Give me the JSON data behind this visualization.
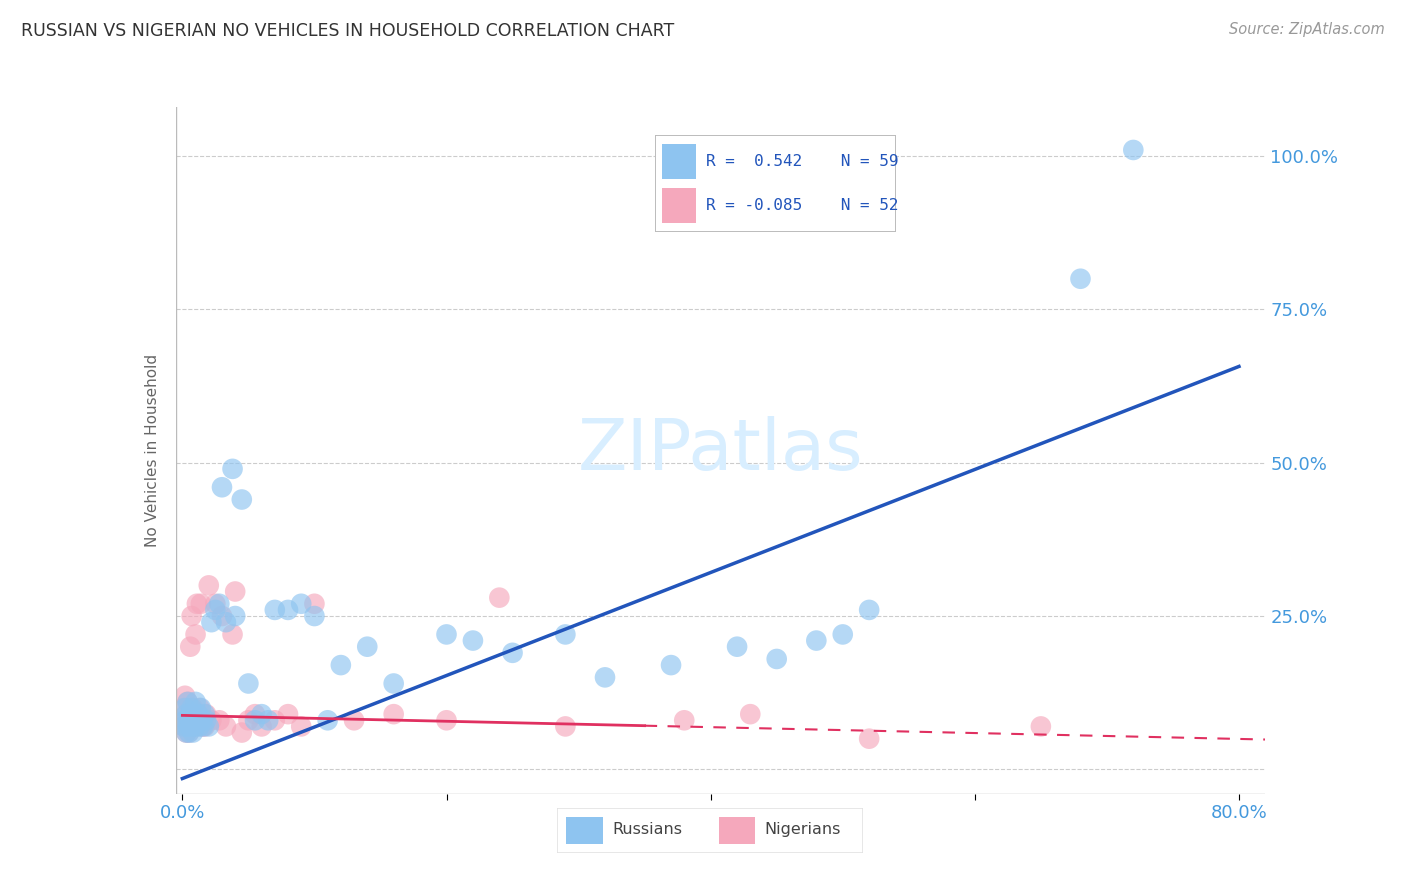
{
  "title": "RUSSIAN VS NIGERIAN NO VEHICLES IN HOUSEHOLD CORRELATION CHART",
  "source": "Source: ZipAtlas.com",
  "ylabel": "No Vehicles in Household",
  "russian_R": 0.542,
  "russian_N": 59,
  "nigerian_R": -0.085,
  "nigerian_N": 52,
  "russian_color": "#8EC4F0",
  "nigerian_color": "#F5A8BC",
  "russian_line_color": "#2255BB",
  "nigerian_line_color": "#E03060",
  "background_color": "#FFFFFF",
  "grid_color": "#CCCCCC",
  "watermark": "ZIPatlas",
  "watermark_color": "#D8EEFF",
  "title_color": "#333333",
  "axis_label_color": "#4499DD",
  "ytick_vals": [
    0.0,
    0.25,
    0.5,
    0.75,
    1.0
  ],
  "ytick_labels": [
    "",
    "25.0%",
    "50.0%",
    "75.0%",
    "100.0%"
  ],
  "xtick_vals": [
    0.0,
    0.2,
    0.4,
    0.6,
    0.8
  ],
  "xtick_labels": [
    "0.0%",
    "",
    "",
    "",
    "80.0%"
  ],
  "xlim": [
    -0.005,
    0.82
  ],
  "ylim": [
    -0.04,
    1.08
  ],
  "rus_x": [
    0.001,
    0.002,
    0.002,
    0.003,
    0.003,
    0.004,
    0.004,
    0.005,
    0.005,
    0.006,
    0.006,
    0.007,
    0.007,
    0.008,
    0.009,
    0.01,
    0.01,
    0.011,
    0.012,
    0.013,
    0.014,
    0.015,
    0.016,
    0.017,
    0.018,
    0.02,
    0.022,
    0.025,
    0.028,
    0.03,
    0.033,
    0.038,
    0.04,
    0.045,
    0.05,
    0.055,
    0.06,
    0.065,
    0.07,
    0.08,
    0.09,
    0.1,
    0.11,
    0.12,
    0.14,
    0.16,
    0.2,
    0.22,
    0.25,
    0.29,
    0.32,
    0.37,
    0.42,
    0.45,
    0.48,
    0.52,
    0.5,
    0.68,
    0.72
  ],
  "rus_y": [
    0.07,
    0.08,
    0.1,
    0.06,
    0.09,
    0.07,
    0.11,
    0.08,
    0.06,
    0.09,
    0.07,
    0.1,
    0.08,
    0.06,
    0.09,
    0.07,
    0.11,
    0.08,
    0.09,
    0.07,
    0.1,
    0.08,
    0.07,
    0.09,
    0.08,
    0.07,
    0.24,
    0.26,
    0.27,
    0.46,
    0.24,
    0.49,
    0.25,
    0.44,
    0.14,
    0.08,
    0.09,
    0.08,
    0.26,
    0.26,
    0.27,
    0.25,
    0.08,
    0.17,
    0.2,
    0.14,
    0.22,
    0.21,
    0.19,
    0.22,
    0.15,
    0.17,
    0.2,
    0.18,
    0.21,
    0.26,
    0.22,
    0.8,
    1.01
  ],
  "nig_x": [
    0.001,
    0.001,
    0.002,
    0.002,
    0.003,
    0.003,
    0.004,
    0.004,
    0.005,
    0.005,
    0.006,
    0.006,
    0.007,
    0.007,
    0.008,
    0.008,
    0.009,
    0.01,
    0.01,
    0.011,
    0.012,
    0.013,
    0.014,
    0.015,
    0.016,
    0.017,
    0.018,
    0.02,
    0.022,
    0.025,
    0.028,
    0.03,
    0.033,
    0.038,
    0.04,
    0.045,
    0.05,
    0.055,
    0.06,
    0.07,
    0.08,
    0.09,
    0.1,
    0.13,
    0.16,
    0.2,
    0.24,
    0.29,
    0.38,
    0.43,
    0.52,
    0.65
  ],
  "nig_y": [
    0.07,
    0.1,
    0.08,
    0.12,
    0.06,
    0.09,
    0.07,
    0.11,
    0.08,
    0.06,
    0.09,
    0.2,
    0.08,
    0.25,
    0.07,
    0.1,
    0.08,
    0.22,
    0.08,
    0.27,
    0.09,
    0.1,
    0.27,
    0.07,
    0.08,
    0.07,
    0.09,
    0.3,
    0.08,
    0.27,
    0.08,
    0.25,
    0.07,
    0.22,
    0.29,
    0.06,
    0.08,
    0.09,
    0.07,
    0.08,
    0.09,
    0.07,
    0.27,
    0.08,
    0.09,
    0.08,
    0.28,
    0.07,
    0.08,
    0.09,
    0.05,
    0.07
  ]
}
